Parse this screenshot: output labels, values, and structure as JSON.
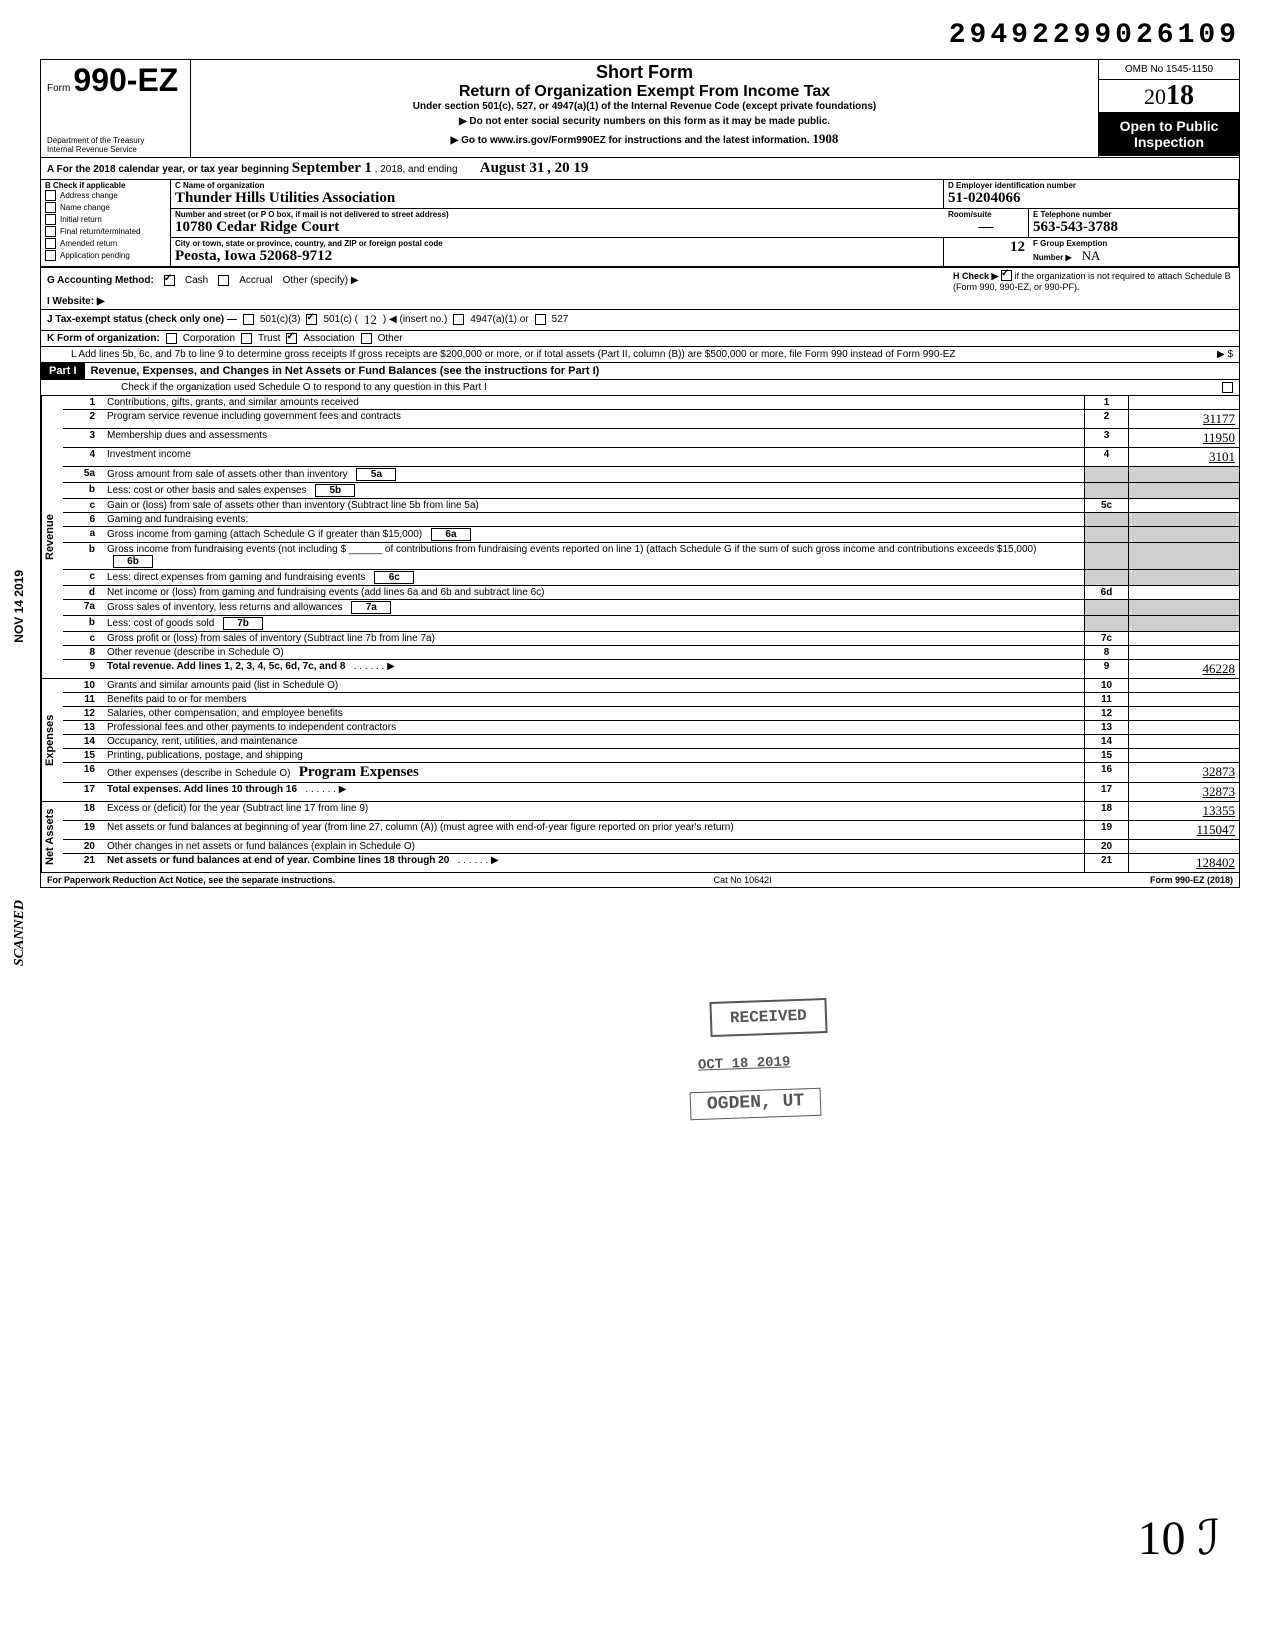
{
  "doc_id": "29492299026109",
  "header": {
    "form_prefix": "Form",
    "form_number": "990-EZ",
    "dept1": "Department of the Treasury",
    "dept2": "Internal Revenue Service",
    "short_form": "Short Form",
    "main_title": "Return of Organization Exempt From Income Tax",
    "sub_title": "Under section 501(c), 527, or 4947(a)(1) of the Internal Revenue Code (except private foundations)",
    "warn": "▶ Do not enter social security numbers on this form as it may be made public.",
    "goto": "▶ Go to www.irs.gov/Form990EZ for instructions and the latest information.",
    "seq": "1908",
    "omb": "OMB No 1545-1150",
    "year_prefix": "20",
    "year": "18",
    "open1": "Open to Public",
    "open2": "Inspection"
  },
  "row_a": {
    "label_a": "A For the 2018 calendar year, or tax year beginning",
    "begin": "September 1",
    "mid": ", 2018, and ending",
    "end_m": "August 31",
    "end_y": ", 20 19"
  },
  "section_b": {
    "label": "B Check if applicable",
    "items": [
      "Address change",
      "Name change",
      "Initial return",
      "Final return/terminated",
      "Amended return",
      "Application pending"
    ]
  },
  "section_c": {
    "name_label": "C Name of organization",
    "name": "Thunder Hills Utilities Association",
    "street_label": "Number and street (or P O box, if mail is not delivered to street address)",
    "room_label": "Room/suite",
    "street": "10780 Cedar Ridge Court",
    "room": "—",
    "city_label": "City or town, state or province, country, and ZIP or foreign postal code",
    "city": "Peosta, Iowa  52068-9712",
    "city_seq": "12"
  },
  "section_d": {
    "ein_label": "D Employer identification number",
    "ein": "51-0204066",
    "phone_label": "E Telephone number",
    "phone": "563-543-3788",
    "group_label": "F Group Exemption",
    "group_label2": "Number ▶",
    "group": "NA"
  },
  "row_g": {
    "g": "G Accounting Method:",
    "cash": "Cash",
    "accrual": "Accrual",
    "other": "Other (specify) ▶",
    "h": "H Check ▶",
    "h_tail": "if the organization is not required to attach Schedule B (Form 990, 990-EZ, or 990-PF)."
  },
  "row_i": {
    "label": "I Website: ▶"
  },
  "row_j": {
    "label": "J Tax-exempt status (check only one) —",
    "c3": "501(c)(3)",
    "c": "501(c) (",
    "c_num": "12",
    "c_tail": ") ◀ (insert no.)",
    "a1": "4947(a)(1) or",
    "s527": "527"
  },
  "row_k": {
    "label": "K Form of organization:",
    "corp": "Corporation",
    "trust": "Trust",
    "assoc": "Association",
    "other": "Other"
  },
  "row_l": {
    "text": "L Add lines 5b, 6c, and 7b to line 9 to determine gross receipts  If gross receipts are $200,000 or more, or if total assets (Part II, column (B)) are $500,000 or more, file Form 990 instead of Form 990-EZ",
    "arrow": "▶  $"
  },
  "part1": {
    "label": "Part I",
    "title": "Revenue, Expenses, and Changes in Net Assets or Fund Balances (see the instructions for Part I)",
    "check": "Check if the organization used Schedule O to respond to any question in this Part I"
  },
  "sides": {
    "revenue": "Revenue",
    "expenses": "Expenses",
    "netassets": "Net Assets",
    "scanned": "SCANNED",
    "date": "NOV 14 2019"
  },
  "lines": [
    {
      "n": "1",
      "label": "Contributions, gifts, grants, and similar amounts received",
      "box": "1",
      "val": ""
    },
    {
      "n": "2",
      "label": "Program service revenue including government fees and contracts",
      "box": "2",
      "val": "31177"
    },
    {
      "n": "3",
      "label": "Membership dues and assessments",
      "box": "3",
      "val": "11950"
    },
    {
      "n": "4",
      "label": "Investment income",
      "box": "4",
      "val": "3101"
    },
    {
      "n": "5a",
      "label": "Gross amount from sale of assets other than inventory",
      "inner": "5a",
      "box": "",
      "val": "",
      "shaded": true
    },
    {
      "n": "b",
      "label": "Less: cost or other basis and sales expenses",
      "inner": "5b",
      "box": "",
      "val": "",
      "shaded": true
    },
    {
      "n": "c",
      "label": "Gain or (loss) from sale of assets other than inventory (Subtract line 5b from line 5a)",
      "box": "5c",
      "val": ""
    },
    {
      "n": "6",
      "label": "Gaming and fundraising events:",
      "box": "",
      "val": "",
      "shaded": true,
      "nobox": true
    },
    {
      "n": "a",
      "label": "Gross income from gaming (attach Schedule G if greater than $15,000)",
      "inner": "6a",
      "box": "",
      "val": "",
      "shaded": true,
      "wrap": true
    },
    {
      "n": "b",
      "label": "Gross income from fundraising events (not including  $ ______ of contributions from fundraising events reported on line 1) (attach Schedule G if the sum of such gross income and contributions exceeds $15,000)",
      "inner": "6b",
      "box": "",
      "val": "",
      "shaded": true,
      "wrap": true
    },
    {
      "n": "c",
      "label": "Less: direct expenses from gaming and fundraising events",
      "inner": "6c",
      "box": "",
      "val": "",
      "shaded": true
    },
    {
      "n": "d",
      "label": "Net income or (loss) from gaming and fundraising events (add lines 6a and 6b and subtract line 6c)",
      "box": "6d",
      "val": "",
      "wrap": true
    },
    {
      "n": "7a",
      "label": "Gross sales of inventory, less returns and allowances",
      "inner": "7a",
      "box": "",
      "val": "",
      "shaded": true
    },
    {
      "n": "b",
      "label": "Less: cost of goods sold",
      "inner": "7b",
      "box": "",
      "val": "",
      "shaded": true
    },
    {
      "n": "c",
      "label": "Gross profit or (loss) from sales of inventory (Subtract line 7b from line 7a)",
      "box": "7c",
      "val": ""
    },
    {
      "n": "8",
      "label": "Other revenue (describe in Schedule O)",
      "box": "8",
      "val": ""
    },
    {
      "n": "9",
      "label": "Total revenue. Add lines 1, 2, 3, 4, 5c, 6d, 7c, and 8",
      "box": "9",
      "val": "46228",
      "arrow": true,
      "bold": true
    }
  ],
  "exp_lines": [
    {
      "n": "10",
      "label": "Grants and similar amounts paid (list in Schedule O)",
      "box": "10",
      "val": ""
    },
    {
      "n": "11",
      "label": "Benefits paid to or for members",
      "box": "11",
      "val": ""
    },
    {
      "n": "12",
      "label": "Salaries, other compensation, and employee benefits",
      "box": "12",
      "val": ""
    },
    {
      "n": "13",
      "label": "Professional fees and other payments to independent contractors",
      "box": "13",
      "val": ""
    },
    {
      "n": "14",
      "label": "Occupancy, rent, utilities, and maintenance",
      "box": "14",
      "val": ""
    },
    {
      "n": "15",
      "label": "Printing, publications, postage, and shipping",
      "box": "15",
      "val": ""
    },
    {
      "n": "16",
      "label": "Other expenses (describe in Schedule O)   Program Expenses",
      "box": "16",
      "val": "32873",
      "hand": true
    },
    {
      "n": "17",
      "label": "Total expenses. Add lines 10 through 16",
      "box": "17",
      "val": "32873",
      "arrow": true,
      "bold": true
    }
  ],
  "na_lines": [
    {
      "n": "18",
      "label": "Excess or (deficit) for the year (Subtract line 17 from line 9)",
      "box": "18",
      "val": "13355"
    },
    {
      "n": "19",
      "label": "Net assets or fund balances at beginning of year (from line 27, column (A)) (must agree with end-of-year figure reported on prior year's return)",
      "box": "19",
      "val": "115047",
      "wrap": true
    },
    {
      "n": "20",
      "label": "Other changes in net assets or fund balances (explain in Schedule O)",
      "box": "20",
      "val": ""
    },
    {
      "n": "21",
      "label": "Net assets or fund balances at end of year. Combine lines 18 through 20",
      "box": "21",
      "val": "128402",
      "arrow": true,
      "bold": true
    }
  ],
  "footer": {
    "left": "For Paperwork Reduction Act Notice, see the separate instructions.",
    "mid": "Cat No 10642I",
    "right": "Form 990-EZ (2018)"
  },
  "stamps": {
    "received": "RECEIVED",
    "date": "OCT 18 2019",
    "ogden": "OGDEN, UT"
  },
  "sig": "10  ℐ"
}
